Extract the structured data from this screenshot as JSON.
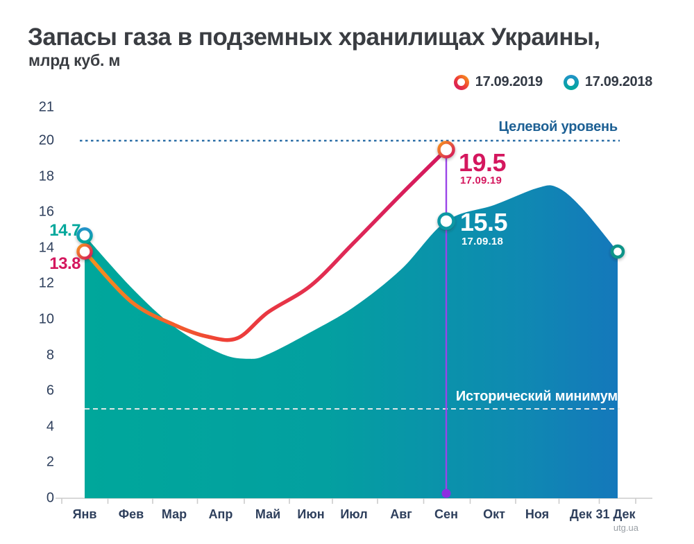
{
  "title": "Запасы газа в подземных хранилищах Украины,",
  "subtitle": "млрд куб. м",
  "watermark": "utg.ua",
  "legend": {
    "items": [
      {
        "label": "17.09.2019",
        "series": "line2019"
      },
      {
        "label": "17.09.2018",
        "series": "area2018"
      }
    ]
  },
  "colors": {
    "title_text": "#3a3d42",
    "axis_text": "#2e3f5c",
    "legend_text": "#333a45",
    "teal": "#00a79b",
    "teal_mid": "#03a0a0",
    "blue_mid": "#0f89b2",
    "blue": "#1478bb",
    "orange": "#f7941d",
    "red_mid": "#ef4136",
    "crimson": "#d4175e",
    "target_line": "#2a6da6",
    "target_text": "#1d6094",
    "histmin_line": "#eaeaea",
    "histmin_text": "#ffffff",
    "purple": "#9b45e8",
    "purple_dot": "#8d2ee0",
    "axis_line": "#cccccc",
    "marker_teal_ring": "#0b97a4",
    "marker_teal_end": "#0e9488",
    "marker_blue_top": "#2293c9",
    "white": "#ffffff",
    "watermark_text": "#9aa0a6"
  },
  "chart_data": {
    "type": "area",
    "title": "Запасы газа в подземных хранилищах Украины",
    "ylabel": "млрд куб. м",
    "ylim": [
      0,
      21
    ],
    "y_ticks": [
      21,
      20,
      18,
      16,
      14,
      12,
      10,
      8,
      6,
      4,
      2,
      0
    ],
    "categories": [
      "Янв",
      "Фев",
      "Мар",
      "Апр",
      "Май",
      "Июн",
      "Июл",
      "Авг",
      "Сен",
      "Окт",
      "Ноя",
      "Дек",
      "31 Дек"
    ],
    "grid": false,
    "legend_position": "top-right",
    "series": [
      {
        "name": "17.09.2019",
        "type": "line",
        "color_gradient": [
          "#f7941d",
          "#ef4136",
          "#d4175e"
        ],
        "monthly_values": [
          13.8,
          11.0,
          9.7,
          9.0,
          10.4,
          11.9,
          14.3,
          17.0,
          19.5
        ],
        "curve_points": [
          [
            0,
            13.8
          ],
          [
            1,
            11.0
          ],
          [
            2,
            9.7
          ],
          [
            2.7,
            9.05
          ],
          [
            3.35,
            8.95
          ],
          [
            4,
            10.4
          ],
          [
            5,
            11.9
          ],
          [
            6,
            14.3
          ],
          [
            7,
            17.0
          ],
          [
            8,
            19.5
          ]
        ]
      },
      {
        "name": "17.09.2018",
        "type": "area",
        "color_gradient": [
          "#00a79b",
          "#1478bb"
        ],
        "monthly_values": [
          14.7,
          11.8,
          9.6,
          8.1,
          8.0,
          9.3,
          10.7,
          12.8,
          15.5,
          16.4,
          17.3,
          16.3,
          13.8
        ],
        "curve_points": [
          [
            0,
            14.7
          ],
          [
            1,
            11.8
          ],
          [
            2,
            9.6
          ],
          [
            3,
            8.1
          ],
          [
            3.6,
            7.8
          ],
          [
            4,
            8.05
          ],
          [
            5,
            9.3
          ],
          [
            6,
            10.7
          ],
          [
            7,
            12.8
          ],
          [
            8,
            15.5
          ],
          [
            9,
            16.4
          ],
          [
            10,
            17.35
          ],
          [
            10.45,
            17.4
          ],
          [
            11,
            16.3
          ],
          [
            12,
            13.8
          ]
        ]
      }
    ],
    "annotations": [
      {
        "label": "Целевой уровень",
        "value": 20,
        "style": "blue-dashed"
      },
      {
        "label": "Исторический минимум",
        "value": 5,
        "style": "white-dashed"
      }
    ],
    "highlight_month": "Сен",
    "callouts": {
      "jan_2018": "14.7",
      "jan_2019": "13.8",
      "sep_2019_value": "19.5",
      "sep_2019_date": "17.09.19",
      "sep_2018_value": "15.5",
      "sep_2018_date": "17.09.18"
    }
  }
}
